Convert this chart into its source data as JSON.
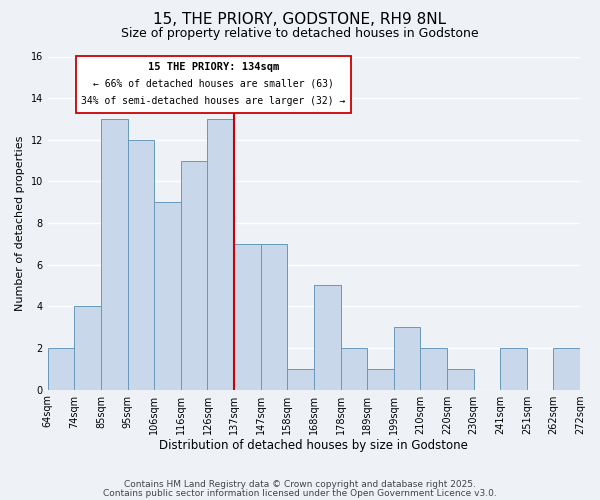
{
  "title": "15, THE PRIORY, GODSTONE, RH9 8NL",
  "subtitle": "Size of property relative to detached houses in Godstone",
  "xlabel": "Distribution of detached houses by size in Godstone",
  "ylabel": "Number of detached properties",
  "bin_edges": [
    "64sqm",
    "74sqm",
    "85sqm",
    "95sqm",
    "106sqm",
    "116sqm",
    "126sqm",
    "137sqm",
    "147sqm",
    "158sqm",
    "168sqm",
    "178sqm",
    "189sqm",
    "199sqm",
    "210sqm",
    "220sqm",
    "230sqm",
    "241sqm",
    "251sqm",
    "262sqm",
    "272sqm"
  ],
  "bar_values": [
    2,
    4,
    13,
    12,
    9,
    11,
    13,
    7,
    7,
    1,
    5,
    2,
    1,
    3,
    2,
    1,
    0,
    2,
    0,
    2
  ],
  "bar_color": "#c8d8ea",
  "bar_edge_color": "#6699bb",
  "vline_index": 6,
  "vline_color": "#cc0000",
  "ylim": [
    0,
    16
  ],
  "yticks": [
    0,
    2,
    4,
    6,
    8,
    10,
    12,
    14,
    16
  ],
  "annotation_title": "15 THE PRIORY: 134sqm",
  "annotation_line1": "← 66% of detached houses are smaller (63)",
  "annotation_line2": "34% of semi-detached houses are larger (32) →",
  "annotation_box_facecolor": "#ffffff",
  "annotation_box_edgecolor": "#cc0000",
  "footer1": "Contains HM Land Registry data © Crown copyright and database right 2025.",
  "footer2": "Contains public sector information licensed under the Open Government Licence v3.0.",
  "background_color": "#eef2f7",
  "grid_color": "#ffffff",
  "title_fontsize": 11,
  "subtitle_fontsize": 9,
  "ylabel_fontsize": 8,
  "xlabel_fontsize": 8.5,
  "tick_fontsize": 7,
  "footer_fontsize": 6.5
}
